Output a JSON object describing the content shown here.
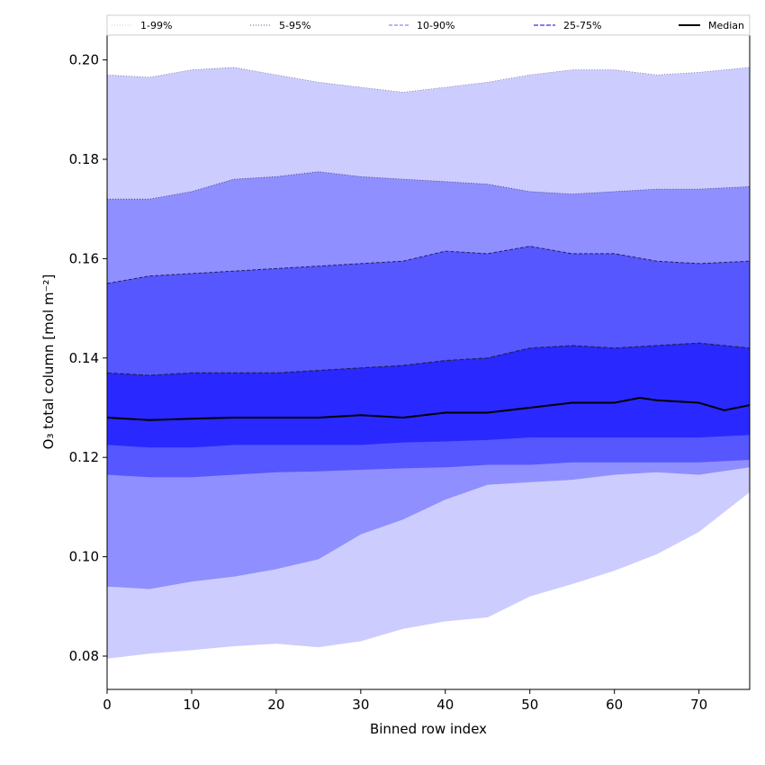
{
  "chart_data": {
    "type": "area",
    "xlabel": "Binned row index",
    "ylabel": "O₃ total column [mol m⁻²]",
    "xlim": [
      0,
      76
    ],
    "ylim": [
      0.0733,
      0.205
    ],
    "xticks": [
      0,
      10,
      20,
      30,
      40,
      50,
      60,
      70
    ],
    "yticks": [
      0.08,
      0.1,
      0.12,
      0.14,
      0.16,
      0.18,
      0.2
    ],
    "ytick_labels": [
      "0.08",
      "0.10",
      "0.12",
      "0.14",
      "0.16",
      "0.18",
      "0.20"
    ],
    "legend": {
      "position": "top",
      "entries": [
        {
          "label": "1-99%",
          "style": "dotted",
          "color": "#cccccc"
        },
        {
          "label": "5-95%",
          "style": "dotted",
          "color": "#555599"
        },
        {
          "label": "10-90%",
          "style": "dashed",
          "color": "#8888ff"
        },
        {
          "label": "25-75%",
          "style": "dashed",
          "color": "#5555dd"
        },
        {
          "label": "Median",
          "style": "solid",
          "color": "#000000"
        }
      ]
    },
    "bands": [
      {
        "name": "1-99%",
        "color": "#ccccff",
        "x": [
          0,
          5,
          10,
          15,
          20,
          25,
          30,
          35,
          40,
          45,
          50,
          55,
          60,
          65,
          70,
          76
        ],
        "lower": [
          0.0795,
          0.0805,
          0.0812,
          0.082,
          0.0825,
          0.0818,
          0.083,
          0.0855,
          0.087,
          0.0878,
          0.092,
          0.0945,
          0.0972,
          0.1005,
          0.105,
          0.113
        ],
        "upper": [
          0.197,
          0.1965,
          0.198,
          0.1985,
          0.197,
          0.1955,
          0.1945,
          0.1935,
          0.1945,
          0.1955,
          0.197,
          0.198,
          0.198,
          0.197,
          0.1975,
          0.1985
        ]
      },
      {
        "name": "5-95%",
        "color": "#8f8fff",
        "x": [
          0,
          5,
          10,
          15,
          20,
          25,
          30,
          35,
          40,
          45,
          50,
          55,
          60,
          65,
          70,
          76
        ],
        "lower": [
          0.094,
          0.0935,
          0.095,
          0.096,
          0.0975,
          0.0995,
          0.1045,
          0.1075,
          0.1115,
          0.1145,
          0.115,
          0.1155,
          0.1165,
          0.117,
          0.1165,
          0.118
        ],
        "upper": [
          0.172,
          0.172,
          0.1735,
          0.176,
          0.1765,
          0.1775,
          0.1765,
          0.176,
          0.1755,
          0.175,
          0.1735,
          0.173,
          0.1735,
          0.174,
          0.174,
          0.1745
        ]
      },
      {
        "name": "10-90%",
        "color": "#5757ff",
        "x": [
          0,
          5,
          10,
          15,
          20,
          25,
          30,
          35,
          40,
          45,
          50,
          55,
          60,
          65,
          70,
          76
        ],
        "lower": [
          0.1165,
          0.116,
          0.116,
          0.1165,
          0.117,
          0.1172,
          0.1175,
          0.1178,
          0.118,
          0.1185,
          0.1185,
          0.119,
          0.119,
          0.119,
          0.119,
          0.1195
        ],
        "upper": [
          0.155,
          0.1565,
          0.157,
          0.1575,
          0.158,
          0.1585,
          0.159,
          0.1595,
          0.1615,
          0.161,
          0.1625,
          0.161,
          0.161,
          0.1595,
          0.159,
          0.1595
        ]
      },
      {
        "name": "25-75%",
        "color": "#2929ff",
        "x": [
          0,
          5,
          10,
          15,
          20,
          25,
          30,
          35,
          40,
          45,
          50,
          55,
          60,
          65,
          70,
          76
        ],
        "lower": [
          0.1225,
          0.122,
          0.122,
          0.1225,
          0.1225,
          0.1225,
          0.1225,
          0.123,
          0.1232,
          0.1235,
          0.124,
          0.124,
          0.124,
          0.124,
          0.124,
          0.1245
        ],
        "upper": [
          0.137,
          0.1365,
          0.137,
          0.137,
          0.137,
          0.1375,
          0.138,
          0.1385,
          0.1395,
          0.14,
          0.142,
          0.1425,
          0.142,
          0.1425,
          0.143,
          0.142
        ]
      }
    ],
    "median": {
      "name": "Median",
      "color": "#000000",
      "x": [
        0,
        5,
        10,
        15,
        20,
        25,
        30,
        35,
        40,
        45,
        50,
        55,
        60,
        63,
        65,
        70,
        73,
        76
      ],
      "y": [
        0.128,
        0.1275,
        0.1278,
        0.128,
        0.128,
        0.128,
        0.1285,
        0.128,
        0.129,
        0.129,
        0.13,
        0.131,
        0.131,
        0.132,
        0.1315,
        0.131,
        0.1295,
        0.1305
      ]
    }
  }
}
